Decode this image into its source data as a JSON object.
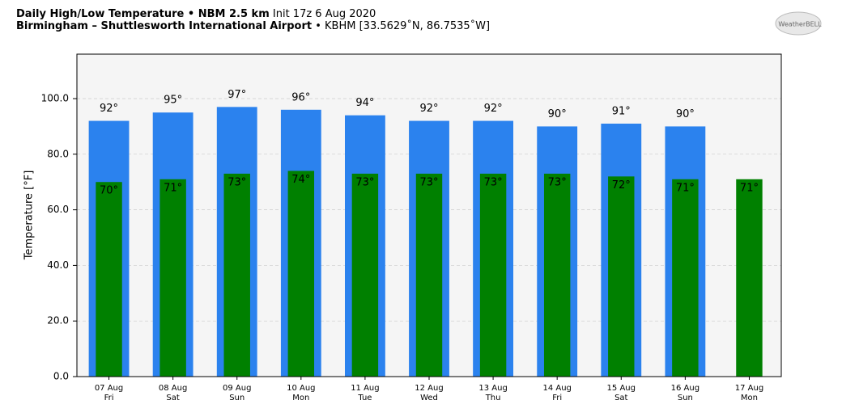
{
  "chart_data": {
    "type": "bar",
    "title": "Daily High/Low Temperature • NBM 2.5 km",
    "init": "Init 17z 6 Aug 2020",
    "subtitle": "Birmingham – Shuttlesworth International Airport",
    "location": "• KBHM [33.5629˚N, 86.7535˚W]",
    "logo": "WeatherBELL",
    "ylabel": "Temperature [°F]",
    "categories": [
      "07 Aug",
      "08 Aug",
      "09 Aug",
      "10 Aug",
      "11 Aug",
      "12 Aug",
      "13 Aug",
      "14 Aug",
      "15 Aug",
      "16 Aug",
      "17 Aug"
    ],
    "weekdays": [
      "Fri",
      "Sat",
      "Sun",
      "Mon",
      "Tue",
      "Wed",
      "Thu",
      "Fri",
      "Sat",
      "Sun",
      "Mon"
    ],
    "series": [
      {
        "color": "#2b82ee",
        "values": [
          92,
          95,
          97,
          96,
          94,
          92,
          92,
          90,
          91,
          90,
          null
        ],
        "value_labels": [
          "92°",
          "95°",
          "97°",
          "96°",
          "94°",
          "92°",
          "92°",
          "90°",
          "91°",
          "90°",
          null
        ]
      },
      {
        "color": "#008000",
        "values": [
          70,
          71,
          73,
          74,
          73,
          73,
          73,
          73,
          72,
          71,
          71
        ],
        "value_labels": [
          "70°",
          "71°",
          "73°",
          "74°",
          "73°",
          "73°",
          "73°",
          "73°",
          "72°",
          "71°",
          "71°"
        ]
      }
    ],
    "ylim": [
      0,
      116
    ],
    "yticks": [
      {
        "value": 0,
        "label": "0.0"
      },
      {
        "value": 20,
        "label": "20.0"
      },
      {
        "value": 40,
        "label": "40.0"
      },
      {
        "value": 60,
        "label": "60.0"
      },
      {
        "value": 80,
        "label": "80.0"
      },
      {
        "value": 100,
        "label": "100.0"
      }
    ],
    "grid": true
  }
}
